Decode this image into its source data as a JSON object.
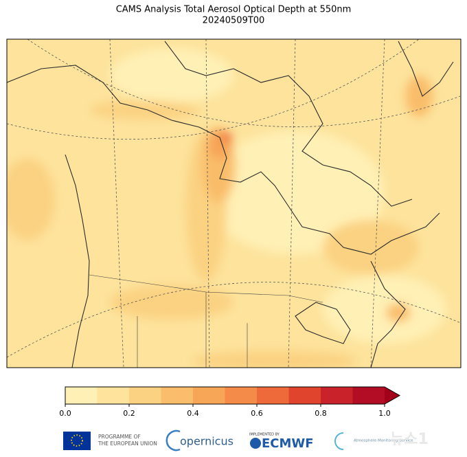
{
  "header": {
    "title": "CAMS Analysis Total Aerosol Optical Depth at 550nm",
    "subtitle": "20240509T00"
  },
  "colorbar": {
    "bounds": [
      0,
      0.1,
      0.2,
      0.3,
      0.4,
      0.5,
      0.6,
      0.7,
      0.8,
      0.9,
      1.0
    ],
    "colors": [
      "#fff0b5",
      "#fde39c",
      "#fbd282",
      "#f9bd6b",
      "#f7a658",
      "#f48b48",
      "#ee6a3a",
      "#e0442d",
      "#c9222a",
      "#b20d24"
    ],
    "extend_color": "#a3001c",
    "ticks": [
      {
        "value": 0,
        "label": "0.0"
      },
      0.2,
      0.4,
      0.6,
      0.8,
      {
        "value": 1.0,
        "label": "1.0"
      }
    ]
  },
  "footer": {
    "eu": "PROGRAMME OF THE EUROPEAN UNION",
    "copernicus": "opernicus",
    "implemented": "IMPLEMENTED BY",
    "ecmwf": "ECMWF",
    "cams": "Atmosphere Monitoring Service",
    "watermark": "뉴스1"
  }
}
